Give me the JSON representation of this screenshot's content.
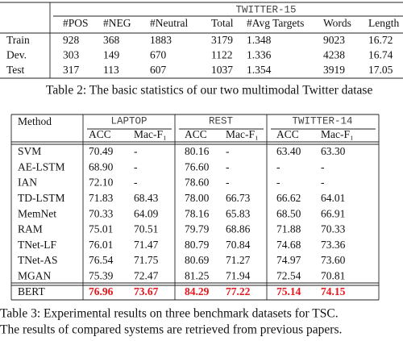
{
  "table2": {
    "group": "TWITTER-15",
    "columns": [
      "#POS",
      "#NEG",
      "#Neutral",
      "Total",
      "#Avg Targets",
      "Words",
      "Length"
    ],
    "rows": [
      [
        "Train",
        "928",
        "368",
        "1883",
        "3179",
        "1.348",
        "9023",
        "16.72"
      ],
      [
        "Dev.",
        "303",
        "149",
        "670",
        "1122",
        "1.336",
        "4238",
        "16.74"
      ],
      [
        "Test",
        "317",
        "113",
        "607",
        "1037",
        "1.354",
        "3919",
        "17.05"
      ]
    ],
    "caption": "Table 2: The basic statistics of our two multimodal Twitter datase"
  },
  "table3": {
    "method_header": "Method",
    "groups": [
      {
        "name": "LAPTOP",
        "columns": [
          "ACC",
          "Mac-F₁"
        ]
      },
      {
        "name": "REST",
        "columns": [
          "ACC",
          "Mac-F₁"
        ]
      },
      {
        "name": "TWITTER-14",
        "columns": [
          "ACC",
          "Mac-F₁"
        ]
      }
    ],
    "rows": [
      [
        "SVM",
        "70.49",
        "-",
        "80.16",
        "-",
        "63.40",
        "63.30"
      ],
      [
        "AE-LSTM",
        "68.90",
        "-",
        "76.60",
        "-",
        "-",
        "-"
      ],
      [
        "IAN",
        "72.10",
        "-",
        "78.60",
        "-",
        "-",
        "-"
      ],
      [
        "TD-LSTM",
        "71.83",
        "68.43",
        "78.00",
        "66.73",
        "66.62",
        "64.01"
      ],
      [
        "MemNet",
        "70.33",
        "64.09",
        "78.16",
        "65.83",
        "68.50",
        "66.91"
      ],
      [
        "RAM",
        "75.01",
        "70.51",
        "79.79",
        "68.86",
        "71.88",
        "70.33"
      ],
      [
        "TNet-LF",
        "76.01",
        "71.47",
        "80.79",
        "70.84",
        "74.68",
        "73.36"
      ],
      [
        "TNet-AS",
        "76.54",
        "71.75",
        "80.69",
        "71.27",
        "74.97",
        "73.60"
      ],
      [
        "MGAN",
        "75.39",
        "72.47",
        "81.25",
        "71.94",
        "72.54",
        "70.81"
      ],
      [
        "BERT",
        "76.96",
        "73.67",
        "84.29",
        "77.22",
        "75.14",
        "74.15"
      ]
    ],
    "caption": [
      "Table 3: Experimental results on three benchmark datasets for TSC.",
      "The results of compared systems are retrieved from previous papers."
    ]
  }
}
